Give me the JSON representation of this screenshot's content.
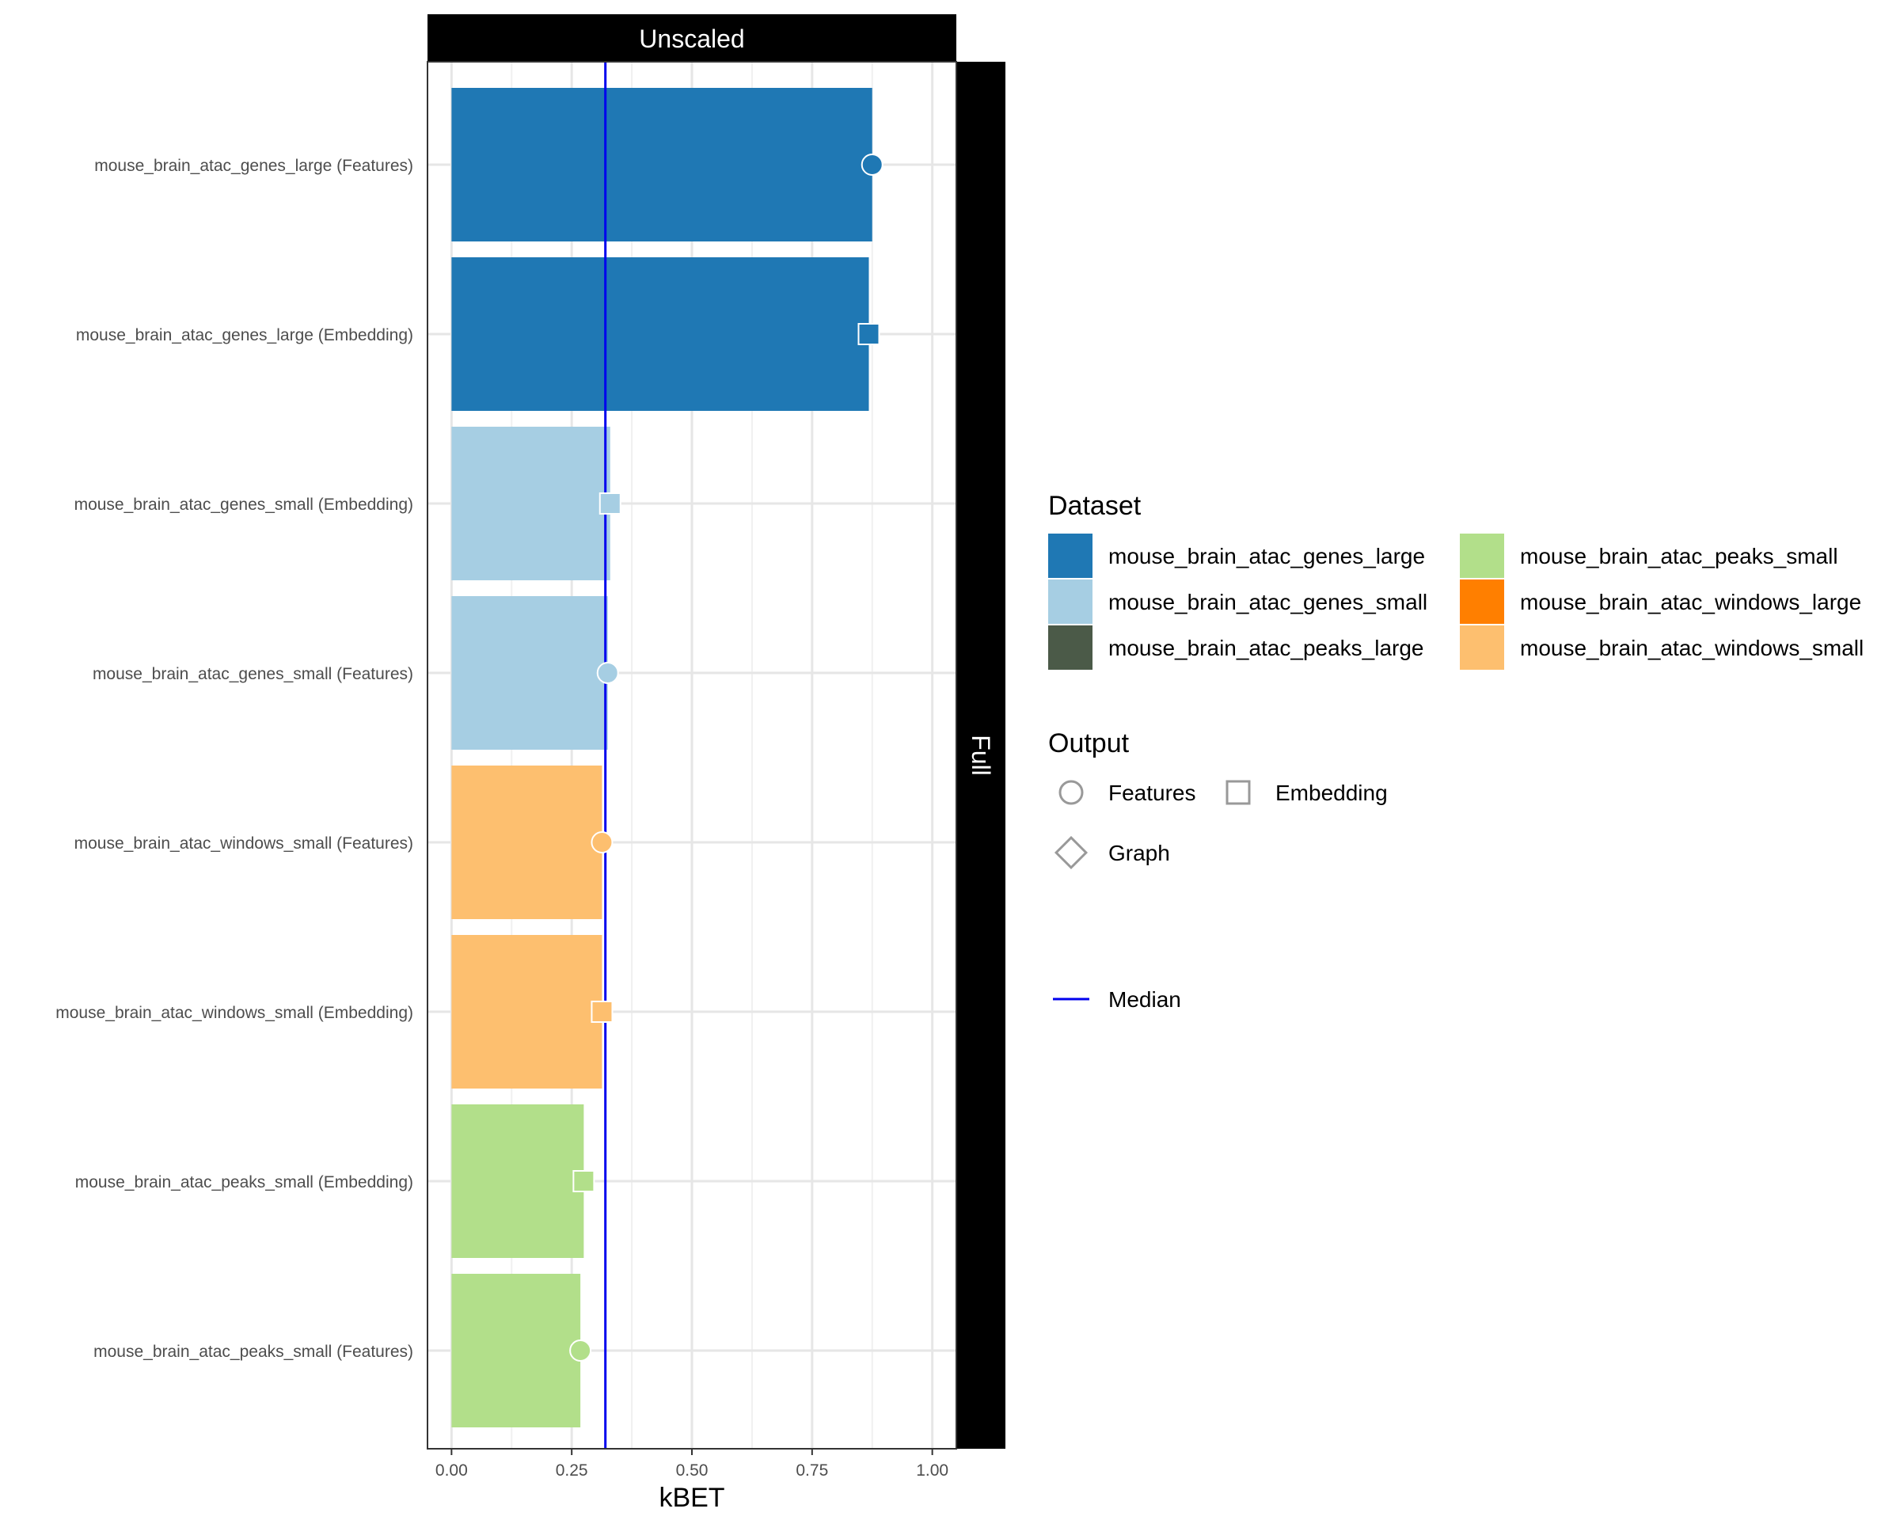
{
  "chart_data": {
    "type": "bar",
    "orientation": "horizontal",
    "facet_top": "Unscaled",
    "facet_right": "Full",
    "xlabel": "kBET",
    "ylabel": "",
    "xlim": [
      -0.05,
      1.05
    ],
    "x_ticks": [
      0,
      0.25,
      0.5,
      0.75,
      1
    ],
    "x_tick_labels": [
      "0.00",
      "0.25",
      "0.50",
      "0.75",
      "1.00"
    ],
    "grid": true,
    "median": 0.32,
    "bars": [
      {
        "label": "mouse_brain_atac_genes_large (Features)",
        "value": 0.875,
        "dataset": "mouse_brain_atac_genes_large",
        "output": "Features"
      },
      {
        "label": "mouse_brain_atac_genes_large (Embedding)",
        "value": 0.868,
        "dataset": "mouse_brain_atac_genes_large",
        "output": "Embedding"
      },
      {
        "label": "mouse_brain_atac_genes_small (Embedding)",
        "value": 0.33,
        "dataset": "mouse_brain_atac_genes_small",
        "output": "Embedding"
      },
      {
        "label": "mouse_brain_atac_genes_small (Features)",
        "value": 0.325,
        "dataset": "mouse_brain_atac_genes_small",
        "output": "Features"
      },
      {
        "label": "mouse_brain_atac_windows_small (Features)",
        "value": 0.313,
        "dataset": "mouse_brain_atac_windows_small",
        "output": "Features"
      },
      {
        "label": "mouse_brain_atac_windows_small (Embedding)",
        "value": 0.313,
        "dataset": "mouse_brain_atac_windows_small",
        "output": "Embedding"
      },
      {
        "label": "mouse_brain_atac_peaks_small (Embedding)",
        "value": 0.275,
        "dataset": "mouse_brain_atac_peaks_small",
        "output": "Embedding"
      },
      {
        "label": "mouse_brain_atac_peaks_small (Features)",
        "value": 0.268,
        "dataset": "mouse_brain_atac_peaks_small",
        "output": "Features"
      }
    ],
    "legend_dataset": {
      "title": "Dataset",
      "placement": "right",
      "items": [
        {
          "name": "mouse_brain_atac_genes_large",
          "color": "#1f78b4"
        },
        {
          "name": "mouse_brain_atac_genes_small",
          "color": "#a6cee3"
        },
        {
          "name": "mouse_brain_atac_peaks_large",
          "color": "#4b5a48"
        },
        {
          "name": "mouse_brain_atac_peaks_small",
          "color": "#b2df8a"
        },
        {
          "name": "mouse_brain_atac_windows_large",
          "color": "#ff7f00"
        },
        {
          "name": "mouse_brain_atac_windows_small",
          "color": "#fdbf6f"
        }
      ]
    },
    "legend_output": {
      "title": "Output",
      "items": [
        {
          "name": "Features",
          "shape": "circle"
        },
        {
          "name": "Embedding",
          "shape": "square"
        },
        {
          "name": "Graph",
          "shape": "diamond"
        }
      ]
    },
    "legend_median": {
      "name": "Median",
      "color": "#0000ee"
    }
  }
}
